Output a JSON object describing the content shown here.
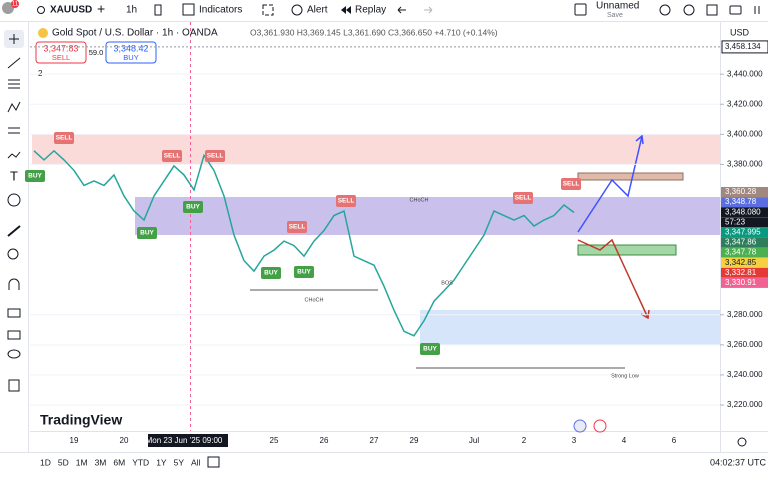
{
  "toolbar": {
    "notification_count": "11",
    "symbol": "XAUUSD",
    "interval": "1h",
    "indicators": "Indicators",
    "alert": "Alert",
    "replay": "Replay",
    "layout_name": "Unnamed",
    "save": "Save"
  },
  "legend": {
    "title": "Gold Spot / U.S. Dollar · 1h · OANDA",
    "ohlc": "O3,361.930 H3,369.145 L3,361.690 C3,366.650 +4.710 (+0.14%)",
    "sell_price": "3,347.83",
    "sell": "SELL",
    "spread": "59.0",
    "buy_price": "3,348.42",
    "buy": "BUY",
    "indicator_count": "2"
  },
  "chart_data": {
    "type": "line",
    "currency": "USD",
    "color": "#26a69a",
    "categories": [
      null,
      null,
      null,
      null,
      "19",
      null,
      null,
      null,
      null,
      "20",
      null,
      null,
      null,
      null,
      null,
      "Mon 23 Jun '25 09:00",
      null,
      null,
      null,
      null,
      null,
      null,
      null,
      null,
      "25",
      null,
      null,
      null,
      null,
      "26",
      null,
      null,
      null,
      null,
      "27",
      null,
      null,
      null,
      "29",
      null,
      null,
      null,
      null,
      null,
      "Jul",
      null,
      null,
      null,
      null,
      "2",
      null,
      null,
      null,
      null,
      "3",
      null,
      null,
      null,
      null,
      "4",
      null,
      null,
      null,
      null,
      "6",
      null,
      null,
      null,
      null
    ],
    "values": [
      3389,
      3383,
      3389,
      3383,
      3376,
      3366,
      3369,
      3366,
      3373,
      3359,
      3349,
      3343,
      3359,
      3369,
      3379,
      3373,
      3363,
      3386,
      3376,
      3359,
      3333,
      3316,
      3309,
      3319,
      3323,
      3329,
      3326,
      3319,
      3329,
      3336,
      3346,
      3349,
      3319,
      3316,
      3313,
      3299,
      3283,
      3269,
      3266,
      3276,
      3289,
      3296,
      3303,
      3313,
      3323,
      3333,
      3349,
      3346,
      3343,
      3346,
      3339,
      3343,
      3346,
      3353,
      3348,
      null,
      null,
      null,
      null,
      null,
      null,
      null,
      null,
      null,
      null,
      null,
      null,
      null,
      null
    ],
    "ylim": [
      3202.7,
      3474.7
    ],
    "yticks": [
      {
        "value": 3440,
        "label": "3,440.000"
      },
      {
        "value": 3420,
        "label": "3,420.000"
      },
      {
        "value": 3400,
        "label": "3,400.000"
      },
      {
        "value": 3380,
        "label": "3,380.000"
      },
      {
        "value": 3280,
        "label": "3,280.000"
      },
      {
        "value": 3260,
        "label": "3,260.000"
      },
      {
        "value": 3240,
        "label": "3,240.000"
      },
      {
        "value": 3220,
        "label": "3,220.000"
      }
    ],
    "grid": true,
    "high_marker": {
      "value": 3458.134,
      "label": "3,458.134"
    },
    "price_labels": [
      {
        "label": "3,360.28",
        "color": "#a1887f",
        "text_color": "#ffffff"
      },
      {
        "label": "3,348.78",
        "color": "#5b6ee1",
        "text_color": "#ffffff"
      },
      {
        "label": "3,348.080",
        "color": "#131722",
        "text_color": "#ffffff"
      },
      {
        "label": "57:23",
        "color": "#131722",
        "text_color": "#ffffff"
      },
      {
        "label": "3,347.995",
        "color": "#089981",
        "text_color": "#ffffff"
      },
      {
        "label": "3,347.86",
        "color": "#2e7d5b",
        "text_color": "#ffffff"
      },
      {
        "label": "3,347.78",
        "color": "#4caf50",
        "text_color": "#ffffff"
      },
      {
        "label": "3,342.85",
        "color": "#f5d142",
        "text_color": "#131722"
      },
      {
        "label": "3,332.81",
        "color": "#e53935",
        "text_color": "#ffffff"
      },
      {
        "label": "3,330.91",
        "color": "#f06292",
        "text_color": "#ffffff"
      }
    ],
    "annotations": [
      "SELL",
      "SELL",
      "SELL",
      "BUY",
      "BUY",
      "BUY",
      "SELL",
      "SELL",
      "BUY",
      "BUY",
      "SELL",
      "SELL",
      "BUY",
      "CHoCH",
      "CHoCH",
      "BOS",
      "Strong Low"
    ]
  },
  "watermark": "TradingView",
  "bottom_bar": {
    "ranges": [
      "1D",
      "5D",
      "1M",
      "3M",
      "6M",
      "YTD",
      "1Y",
      "5Y",
      "All"
    ],
    "clock": "04:02:37 UTC"
  }
}
